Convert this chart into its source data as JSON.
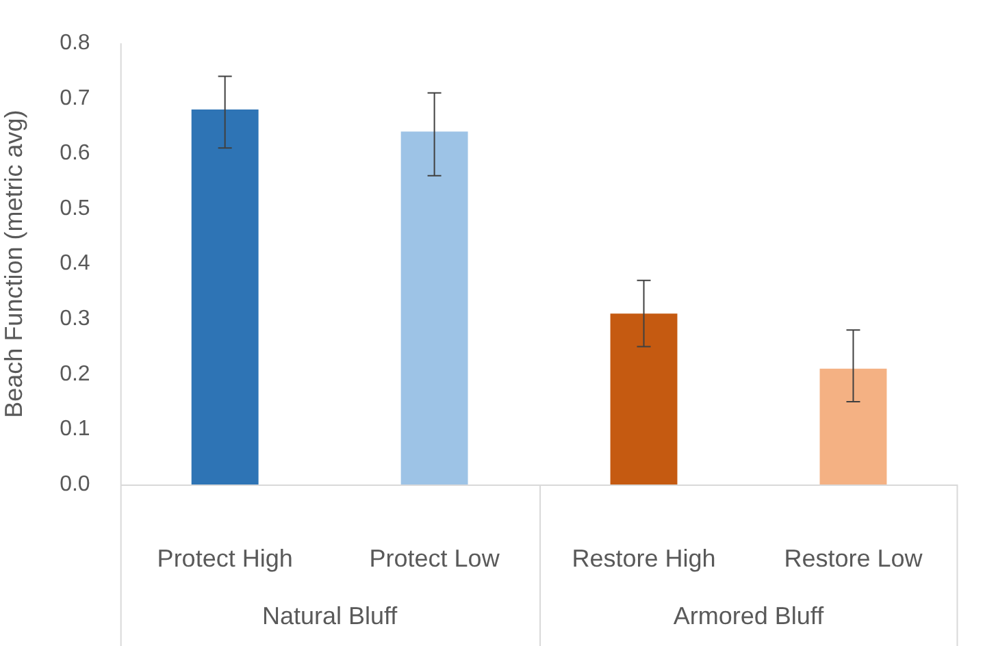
{
  "chart_data": {
    "type": "bar",
    "ylabel": "Beach Function (metric avg)",
    "categories": [
      "Protect High",
      "Protect Low",
      "Restore High",
      "Restore Low"
    ],
    "values": [
      0.68,
      0.64,
      0.31,
      0.21
    ],
    "colors": [
      "#2e74b5",
      "#9dc3e6",
      "#c55a11",
      "#f4b183"
    ],
    "errors": [
      [
        0.61,
        0.74
      ],
      [
        0.56,
        0.71
      ],
      [
        0.25,
        0.37
      ],
      [
        0.15,
        0.28
      ]
    ],
    "annotations": [
      "Natural Bluff",
      "Armored Bluff"
    ],
    "ylim": [
      0,
      0.8
    ],
    "yticks": [
      {
        "value": 0,
        "label": "0.0"
      },
      0.1,
      0.2,
      0.3,
      0.4,
      0.5,
      0.6,
      0.7,
      0.8
    ],
    "grid": false,
    "legend": false
  }
}
